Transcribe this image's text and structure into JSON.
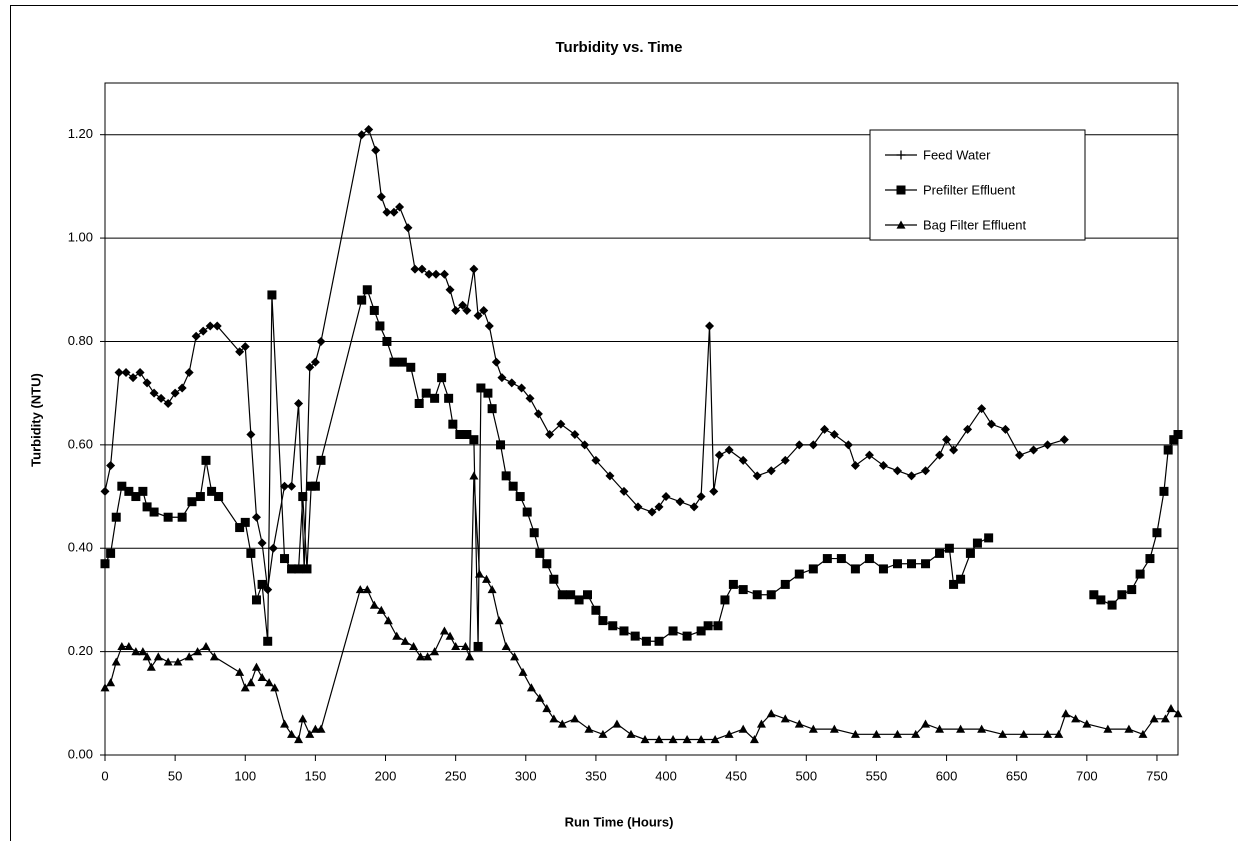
{
  "chart_data": {
    "type": "line",
    "title": "Turbidity vs. Time",
    "x_label": "Run Time (Hours)",
    "y_label": "Turbidity (NTU)",
    "xlim": [
      0,
      765
    ],
    "xticks": [
      0,
      50,
      100,
      150,
      200,
      250,
      300,
      350,
      400,
      450,
      500,
      550,
      600,
      650,
      700,
      750
    ],
    "ylim": [
      0,
      1.3
    ],
    "yticks": [
      {
        "value": 0,
        "label": "0.00"
      },
      {
        "value": 0.2,
        "label": "0.20"
      },
      {
        "value": 0.4,
        "label": "0.40"
      },
      {
        "value": 0.6,
        "label": "0.60"
      },
      {
        "value": 0.8,
        "label": "0.80"
      },
      {
        "value": 1.0,
        "label": "1.00"
      },
      {
        "value": 1.2,
        "label": "1.20"
      }
    ],
    "grid": true,
    "legend": "top-right",
    "series": [
      {
        "name": "Feed Water",
        "color": "#000000",
        "marker": "diamond",
        "x": [
          0,
          4,
          10,
          15,
          20,
          25,
          30,
          35,
          40,
          45,
          50,
          55,
          60,
          65,
          70,
          75,
          80,
          96,
          100,
          104,
          108,
          112,
          116,
          120,
          128,
          133,
          138,
          142,
          146,
          150,
          154,
          183,
          188,
          193,
          197,
          201,
          206,
          210,
          216,
          221,
          226,
          231,
          236,
          242,
          246,
          250,
          255,
          258,
          263,
          266,
          270,
          274,
          279,
          283,
          290,
          297,
          303,
          309,
          317,
          325,
          335,
          342,
          350,
          360,
          370,
          380,
          390,
          395,
          400,
          410,
          420,
          425,
          431,
          434,
          438,
          445,
          455,
          465,
          475,
          485,
          495,
          505,
          513,
          520,
          530,
          535,
          545,
          555,
          565,
          575,
          585,
          595,
          600,
          605,
          615,
          625,
          632,
          642,
          652,
          662,
          672,
          684
        ],
        "values": [
          0.51,
          0.56,
          0.74,
          0.74,
          0.73,
          0.74,
          0.72,
          0.7,
          0.69,
          0.68,
          0.7,
          0.71,
          0.74,
          0.81,
          0.82,
          0.83,
          0.83,
          0.78,
          0.79,
          0.62,
          0.46,
          0.41,
          0.32,
          0.4,
          0.52,
          0.52,
          0.68,
          0.36,
          0.75,
          0.76,
          0.8,
          1.2,
          1.21,
          1.17,
          1.08,
          1.05,
          1.05,
          1.06,
          1.02,
          0.94,
          0.94,
          0.93,
          0.93,
          0.93,
          0.9,
          0.86,
          0.87,
          0.86,
          0.94,
          0.85,
          0.86,
          0.83,
          0.76,
          0.73,
          0.72,
          0.71,
          0.69,
          0.66,
          0.62,
          0.64,
          0.62,
          0.6,
          0.57,
          0.54,
          0.51,
          0.48,
          0.47,
          0.48,
          0.5,
          0.49,
          0.48,
          0.5,
          0.83,
          0.51,
          0.58,
          0.59,
          0.57,
          0.54,
          0.55,
          0.57,
          0.6,
          0.6,
          0.63,
          0.62,
          0.6,
          0.56,
          0.58,
          0.56,
          0.55,
          0.54,
          0.55,
          0.58,
          0.61,
          0.59,
          0.63,
          0.67,
          0.64,
          0.63,
          0.58,
          0.59,
          0.6,
          0.61
        ]
      },
      {
        "name": "Prefilter Effluent",
        "color": "#000000",
        "marker": "square",
        "x": [
          0,
          4,
          8,
          12,
          17,
          22,
          27,
          30,
          35,
          45,
          55,
          62,
          68,
          72,
          76,
          81,
          96,
          100,
          104,
          108,
          112,
          116,
          119,
          128,
          133,
          138,
          141,
          144,
          147,
          150,
          154,
          183,
          187,
          192,
          196,
          201,
          206,
          212,
          218,
          224,
          229,
          235,
          240,
          245,
          248,
          253,
          258,
          263,
          266,
          268,
          273,
          276,
          282,
          286,
          291,
          296,
          301,
          306,
          310,
          315,
          320,
          326,
          332,
          338,
          344,
          350,
          355,
          362,
          370,
          378,
          386,
          395,
          405,
          415,
          425,
          430,
          437,
          442,
          448,
          455,
          465,
          475,
          485,
          495,
          505,
          515,
          525,
          535,
          545,
          555,
          565,
          575,
          585,
          595,
          602,
          605,
          610,
          617,
          622,
          630,
          null,
          705,
          710,
          718,
          725,
          732,
          738,
          745,
          750,
          755,
          758,
          762,
          765
        ],
        "values": [
          0.37,
          0.39,
          0.46,
          0.52,
          0.51,
          0.5,
          0.51,
          0.48,
          0.47,
          0.46,
          0.46,
          0.49,
          0.5,
          0.57,
          0.51,
          0.5,
          0.44,
          0.45,
          0.39,
          0.3,
          0.33,
          0.22,
          0.89,
          0.38,
          0.36,
          0.36,
          0.5,
          0.36,
          0.52,
          0.52,
          0.57,
          0.88,
          0.9,
          0.86,
          0.83,
          0.8,
          0.76,
          0.76,
          0.75,
          0.68,
          0.7,
          0.69,
          0.73,
          0.69,
          0.64,
          0.62,
          0.62,
          0.61,
          0.21,
          0.71,
          0.7,
          0.67,
          0.6,
          0.54,
          0.52,
          0.5,
          0.47,
          0.43,
          0.39,
          0.37,
          0.34,
          0.31,
          0.31,
          0.3,
          0.31,
          0.28,
          0.26,
          0.25,
          0.24,
          0.23,
          0.22,
          0.22,
          0.24,
          0.23,
          0.24,
          0.25,
          0.25,
          0.3,
          0.33,
          0.32,
          0.31,
          0.31,
          0.33,
          0.35,
          0.36,
          0.38,
          0.38,
          0.36,
          0.38,
          0.36,
          0.37,
          0.37,
          0.37,
          0.39,
          0.4,
          0.33,
          0.34,
          0.39,
          0.41,
          0.42,
          null,
          0.31,
          0.3,
          0.29,
          0.31,
          0.32,
          0.35,
          0.38,
          0.43,
          0.51,
          0.59,
          0.61,
          0.62
        ]
      },
      {
        "name": "Bag Filter Effluent",
        "color": "#000000",
        "marker": "triangle",
        "x": [
          0,
          4,
          8,
          12,
          17,
          22,
          27,
          30,
          33,
          38,
          45,
          52,
          60,
          66,
          72,
          78,
          96,
          100,
          104,
          108,
          112,
          117,
          121,
          128,
          133,
          138,
          141,
          146,
          150,
          154,
          182,
          187,
          192,
          197,
          202,
          208,
          214,
          220,
          225,
          230,
          235,
          242,
          246,
          250,
          257,
          260,
          263,
          267,
          272,
          276,
          281,
          286,
          292,
          298,
          304,
          310,
          315,
          320,
          326,
          335,
          345,
          355,
          365,
          375,
          385,
          395,
          405,
          415,
          425,
          435,
          445,
          455,
          463,
          468,
          475,
          485,
          495,
          505,
          520,
          535,
          550,
          565,
          578,
          585,
          595,
          610,
          625,
          640,
          655,
          672,
          680,
          685,
          692,
          700,
          715,
          730,
          740,
          748,
          756,
          760,
          765
        ],
        "values": [
          0.13,
          0.14,
          0.18,
          0.21,
          0.21,
          0.2,
          0.2,
          0.19,
          0.17,
          0.19,
          0.18,
          0.18,
          0.19,
          0.2,
          0.21,
          0.19,
          0.16,
          0.13,
          0.14,
          0.17,
          0.15,
          0.14,
          0.13,
          0.06,
          0.04,
          0.03,
          0.07,
          0.04,
          0.05,
          0.05,
          0.32,
          0.32,
          0.29,
          0.28,
          0.26,
          0.23,
          0.22,
          0.21,
          0.19,
          0.19,
          0.2,
          0.24,
          0.23,
          0.21,
          0.21,
          0.19,
          0.54,
          0.35,
          0.34,
          0.32,
          0.26,
          0.21,
          0.19,
          0.16,
          0.13,
          0.11,
          0.09,
          0.07,
          0.06,
          0.07,
          0.05,
          0.04,
          0.06,
          0.04,
          0.03,
          0.03,
          0.03,
          0.03,
          0.03,
          0.03,
          0.04,
          0.05,
          0.03,
          0.06,
          0.08,
          0.07,
          0.06,
          0.05,
          0.05,
          0.04,
          0.04,
          0.04,
          0.04,
          0.06,
          0.05,
          0.05,
          0.05,
          0.04,
          0.04,
          0.04,
          0.04,
          0.08,
          0.07,
          0.06,
          0.05,
          0.05,
          0.04,
          0.07,
          0.07,
          0.09,
          0.08
        ]
      }
    ]
  }
}
